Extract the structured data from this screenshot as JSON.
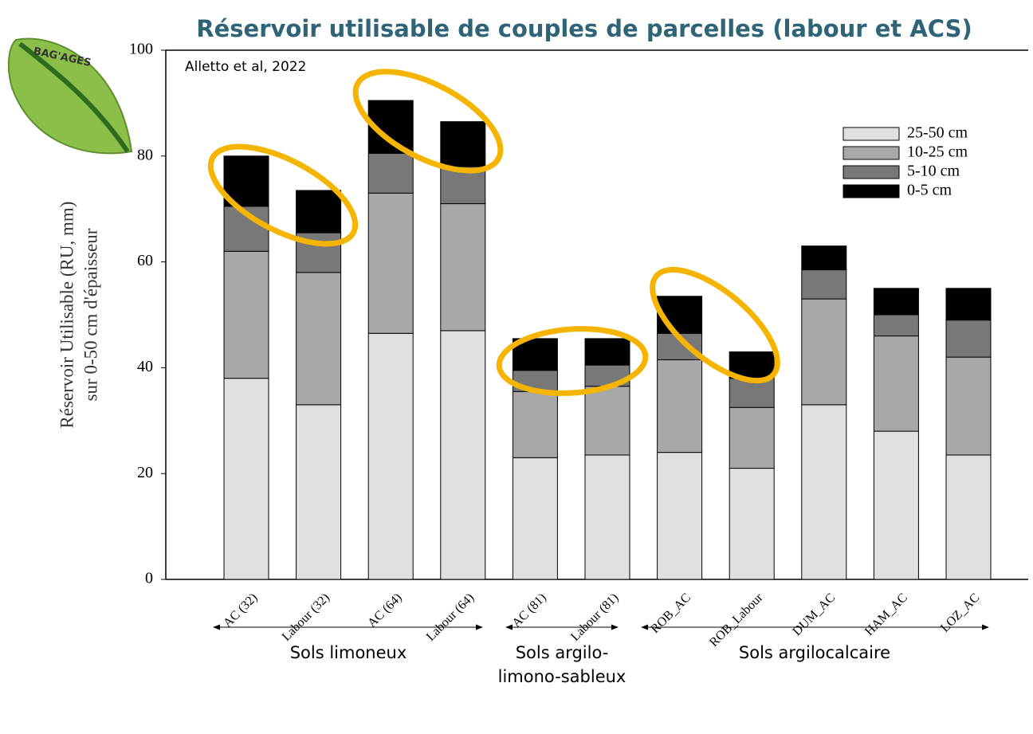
{
  "chart_data": {
    "type": "stacked_bar",
    "title": "Réservoir utilisable de couples de parcelles (labour et ACS)",
    "source": "Alletto et al, 2022",
    "logo": "BAG'AGES",
    "ylabel": [
      "Réservoir Utilisable (RU, mm)",
      "sur 0-50 cm d'épaisseur"
    ],
    "categories": [
      "AC (32)",
      "Labour (32)",
      "AC (64)",
      "Labour (64)",
      "AC (81)",
      "Labour (81)",
      "ROB_AC",
      "ROB_Labour",
      "DUM_AC",
      "HAM_AC",
      "LOZ_AC"
    ],
    "series": [
      {
        "name": "25-50 cm",
        "color": "#e0e0e0",
        "values": [
          38,
          33,
          46.5,
          47,
          23,
          23.5,
          24,
          21,
          33,
          28,
          23.5
        ]
      },
      {
        "name": "10-25 cm",
        "color": "#a8a8a8",
        "values": [
          24,
          25,
          26.5,
          24,
          12.5,
          13,
          17.5,
          11.5,
          20,
          18,
          18.5
        ]
      },
      {
        "name": "5-10 cm",
        "color": "#787878",
        "values": [
          8.5,
          7.5,
          7.5,
          7,
          4,
          4,
          5,
          5.5,
          5.5,
          4,
          7
        ]
      },
      {
        "name": "0-5 cm",
        "color": "#000000",
        "values": [
          9.5,
          8,
          10,
          8.5,
          6,
          5,
          7,
          5,
          4.5,
          5,
          6
        ]
      }
    ],
    "groups": [
      {
        "lines": [
          "Sols limoneux"
        ]
      },
      {
        "lines": [
          "Sols argilo-",
          "limono-sableux"
        ]
      },
      {
        "lines": [
          "Sols argilocalcaire"
        ]
      }
    ],
    "ylim": [
      0,
      100
    ],
    "yticks": [
      0,
      20,
      40,
      60,
      80,
      100
    ],
    "legend": "upper right"
  }
}
